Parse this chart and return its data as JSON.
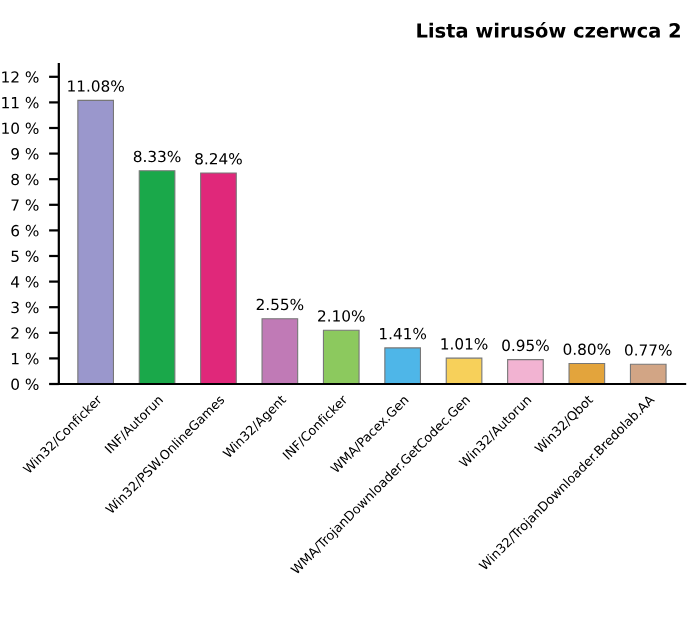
{
  "chart_data": {
    "type": "bar",
    "title": "Lista wirusów czerwca 2",
    "categories": [
      "Win32/Conficker",
      "INF/Autorun",
      "Win32/PSW.OnlineGames",
      "Win32/Agent",
      "INF/Conficker",
      "WMA/Pacex.Gen",
      "WMA/TrojanDownloader.GetCodec.Gen",
      "Win32/Autorun",
      "Win32/Qbot",
      "Win32/TrojanDownloader.Bredolab.AA"
    ],
    "values": [
      11.08,
      8.33,
      8.24,
      2.55,
      2.1,
      1.41,
      1.01,
      0.95,
      0.8,
      0.77
    ],
    "colors": [
      "#9a97cc",
      "#1aa84a",
      "#e0287a",
      "#c07ab6",
      "#8cc95e",
      "#4eb6e8",
      "#f7d05a",
      "#f2b3d2",
      "#e3a43c",
      "#d2a585"
    ],
    "value_labels": [
      "11.08%",
      "8.33%",
      "8.24%",
      "2.55%",
      "2.10%",
      "1.41%",
      "1.01%",
      "0.95%",
      "0.80%",
      "0.77%"
    ],
    "ylim": [
      0,
      12.5
    ],
    "yticks": [
      {
        "value": 0,
        "label": "0 %"
      },
      {
        "value": 1,
        "label": "1 %"
      },
      {
        "value": 2,
        "label": "2 %"
      },
      {
        "value": 3,
        "label": "3 %"
      },
      {
        "value": 4,
        "label": "4 %"
      },
      {
        "value": 5,
        "label": "5 %"
      },
      {
        "value": 6,
        "label": "6 %"
      },
      {
        "value": 7,
        "label": "7 %"
      },
      {
        "value": 8,
        "label": "8 %"
      },
      {
        "value": 9,
        "label": "9 %"
      },
      {
        "value": 10,
        "label": "10 %"
      },
      {
        "value": 11,
        "label": "11 %"
      },
      {
        "value": 12,
        "label": "12 %"
      }
    ],
    "grid": false
  }
}
